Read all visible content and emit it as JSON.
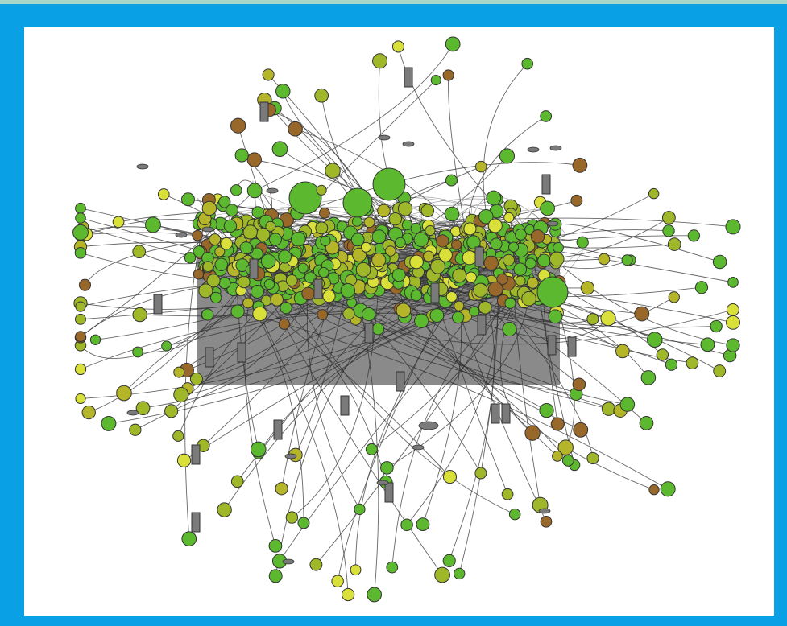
{
  "figure": {
    "type": "network-graph",
    "frame_color": "#0aa0e6",
    "outer_background": "#a9d6c9",
    "canvas_background": "#ffffff",
    "edge_color": "#333333",
    "node_outline": "#333333"
  },
  "palette": {
    "green": "#5cb82e",
    "yellow_green": "#9fb82a",
    "yellow": "#d9e03a",
    "olive": "#b5b52a",
    "brown": "#98672a",
    "gray_node": "#7a7a7a"
  },
  "node_shapes": [
    "circle",
    "rectangle",
    "ellipse"
  ]
}
